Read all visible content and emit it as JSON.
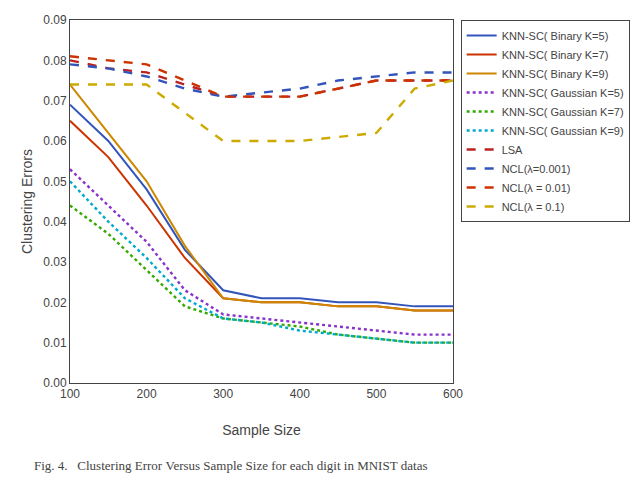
{
  "chart_data": {
    "type": "line",
    "x_label": "Sample Size",
    "y_label": "Clustering Errors",
    "annotations": [
      "Fig. 4.   Clustering Error Versus Sample Size for each digit in MNIST datas"
    ],
    "x": [
      100,
      150,
      200,
      250,
      300,
      350,
      400,
      450,
      500,
      550,
      600
    ],
    "series": [
      {
        "name": "KNN-SC( Binary K=5)",
        "color": "#3355BB",
        "line_style": "solid",
        "values": [
          0.069,
          0.06,
          0.048,
          0.033,
          0.023,
          0.021,
          0.021,
          0.02,
          0.02,
          0.019,
          0.019
        ]
      },
      {
        "name": "KNN-SC( Binary K=7)",
        "color": "#CC3300",
        "line_style": "solid",
        "values": [
          0.065,
          0.056,
          0.044,
          0.031,
          0.021,
          0.02,
          0.02,
          0.019,
          0.019,
          0.018,
          0.018
        ]
      },
      {
        "name": "KNN-SC( Binary K=9)",
        "color": "#CC8800",
        "line_style": "solid",
        "values": [
          0.074,
          0.062,
          0.05,
          0.034,
          0.021,
          0.02,
          0.02,
          0.019,
          0.019,
          0.018,
          0.018
        ]
      },
      {
        "name": "KNN-SC( Gaussian K=5)",
        "color": "#8833CC",
        "line_style": "dotted",
        "values": [
          0.053,
          0.044,
          0.035,
          0.023,
          0.017,
          0.016,
          0.015,
          0.014,
          0.013,
          0.012,
          0.012
        ]
      },
      {
        "name": "KNN-SC( Gaussian K=7)",
        "color": "#33AA00",
        "line_style": "dotted",
        "values": [
          0.044,
          0.037,
          0.028,
          0.019,
          0.016,
          0.015,
          0.014,
          0.012,
          0.011,
          0.01,
          0.01
        ]
      },
      {
        "name": "KNN-SC( Gaussian K=9)",
        "color": "#00AACC",
        "line_style": "dotted",
        "values": [
          0.05,
          0.04,
          0.031,
          0.021,
          0.016,
          0.015,
          0.013,
          0.012,
          0.011,
          0.01,
          0.01
        ]
      },
      {
        "name": "LSA",
        "color": "#BB2222",
        "line_style": "dashed",
        "values": [
          0.08,
          0.078,
          0.077,
          0.074,
          0.071,
          0.071,
          0.071,
          0.073,
          0.075,
          0.075,
          0.075
        ]
      },
      {
        "name": "NCL(λ=0.001)",
        "color": "#3355BB",
        "line_style": "dashed",
        "values": [
          0.079,
          0.078,
          0.076,
          0.073,
          0.071,
          0.072,
          0.073,
          0.075,
          0.076,
          0.077,
          0.077
        ]
      },
      {
        "name": "NCL(λ = 0.01)",
        "color": "#CC3300",
        "line_style": "dashed",
        "values": [
          0.081,
          0.08,
          0.079,
          0.075,
          0.071,
          0.071,
          0.071,
          0.073,
          0.075,
          0.075,
          0.075
        ]
      },
      {
        "name": "NCL(λ = 0.1)",
        "color": "#CCAA00",
        "line_style": "dashed",
        "values": [
          0.074,
          0.074,
          0.074,
          0.067,
          0.06,
          0.06,
          0.06,
          0.061,
          0.062,
          0.073,
          0.075
        ]
      }
    ],
    "xlim": [
      100,
      600
    ],
    "ylim": [
      0,
      0.09
    ],
    "xticks": [
      100,
      200,
      300,
      400,
      500,
      600
    ],
    "yticks": [
      {
        "value": 0,
        "label": "0.00"
      },
      0.01,
      0.02,
      0.03,
      0.04,
      0.05,
      0.06,
      0.07,
      0.08,
      0.09
    ],
    "grid": false,
    "legend": "upper right"
  }
}
